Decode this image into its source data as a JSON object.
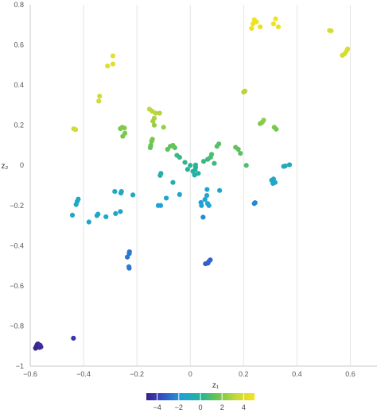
{
  "chart_data": {
    "type": "scatter",
    "xlabel": "z₁",
    "ylabel": "z₂",
    "xlim": [
      -0.6,
      0.7
    ],
    "ylim": [
      -1.0,
      0.8
    ],
    "xticks": [
      "−0.6",
      "−0.4",
      "−0.2",
      "0",
      "0.2",
      "0.4",
      "0.6"
    ],
    "yticks": [
      "0.8",
      "0.6",
      "0.4",
      "0.2",
      "0",
      "−0.2",
      "−0.4",
      "−0.6",
      "−0.8",
      "−1"
    ],
    "grid": "vertical",
    "colorbar": {
      "range": [
        -5,
        5
      ],
      "ticks": [
        "−4",
        "−2",
        "0",
        "2",
        "4"
      ],
      "colorscale": [
        "#3b1e8c",
        "#3557c9",
        "#1fa3d6",
        "#23b39a",
        "#6fc64e",
        "#c8d93a",
        "#f5e31f"
      ]
    },
    "points": [
      {
        "x": -0.574,
        "y": -0.893,
        "c": -4.9
      },
      {
        "x": -0.577,
        "y": -0.902,
        "c": -4.8
      },
      {
        "x": -0.571,
        "y": -0.889,
        "c": -4.7
      },
      {
        "x": -0.565,
        "y": -0.907,
        "c": -4.6
      },
      {
        "x": -0.56,
        "y": -0.904,
        "c": -4.6
      },
      {
        "x": -0.58,
        "y": -0.911,
        "c": -4.8
      },
      {
        "x": -0.563,
        "y": -0.896,
        "c": -4.5
      },
      {
        "x": -0.438,
        "y": -0.861,
        "c": -4.3
      },
      {
        "x": 0.057,
        "y": -0.49,
        "c": -3.3
      },
      {
        "x": 0.066,
        "y": -0.487,
        "c": -3.2
      },
      {
        "x": 0.075,
        "y": -0.471,
        "c": -3.1
      },
      {
        "x": 0.069,
        "y": -0.479,
        "c": -3.1
      },
      {
        "x": -0.236,
        "y": -0.457,
        "c": -2.7
      },
      {
        "x": -0.229,
        "y": -0.44,
        "c": -2.6
      },
      {
        "x": -0.228,
        "y": -0.43,
        "c": -2.6
      },
      {
        "x": -0.23,
        "y": -0.505,
        "c": -2.6
      },
      {
        "x": -0.229,
        "y": -0.512,
        "c": -2.6
      },
      {
        "x": 0.048,
        "y": -0.258,
        "c": -2.2
      },
      {
        "x": 0.24,
        "y": -0.19,
        "c": -2.3
      },
      {
        "x": 0.243,
        "y": -0.186,
        "c": -2.3
      },
      {
        "x": -0.442,
        "y": -0.248,
        "c": -1.3
      },
      {
        "x": -0.428,
        "y": -0.195,
        "c": -1.2
      },
      {
        "x": -0.424,
        "y": -0.18,
        "c": -1.1
      },
      {
        "x": -0.42,
        "y": -0.168,
        "c": -1.1
      },
      {
        "x": -0.38,
        "y": -0.282,
        "c": -1.4
      },
      {
        "x": -0.35,
        "y": -0.25,
        "c": -1.2
      },
      {
        "x": -0.346,
        "y": -0.243,
        "c": -1.2
      },
      {
        "x": -0.316,
        "y": -0.256,
        "c": -1.3
      },
      {
        "x": -0.28,
        "y": -0.24,
        "c": -1.3
      },
      {
        "x": -0.262,
        "y": -0.23,
        "c": -1.2
      },
      {
        "x": -0.283,
        "y": -0.13,
        "c": -1.1
      },
      {
        "x": -0.26,
        "y": -0.138,
        "c": -1.1
      },
      {
        "x": -0.258,
        "y": -0.13,
        "c": -1.0
      },
      {
        "x": -0.215,
        "y": -0.147,
        "c": -1.0
      },
      {
        "x": -0.12,
        "y": -0.2,
        "c": -1.7
      },
      {
        "x": -0.111,
        "y": -0.2,
        "c": -1.6
      },
      {
        "x": -0.09,
        "y": -0.163,
        "c": -1.5
      },
      {
        "x": -0.04,
        "y": -0.145,
        "c": -1.5
      },
      {
        "x": 0.04,
        "y": -0.185,
        "c": -1.8
      },
      {
        "x": 0.042,
        "y": -0.2,
        "c": -1.7
      },
      {
        "x": 0.055,
        "y": -0.17,
        "c": -1.6
      },
      {
        "x": 0.062,
        "y": -0.15,
        "c": -1.5
      },
      {
        "x": 0.063,
        "y": -0.12,
        "c": -1.4
      },
      {
        "x": 0.065,
        "y": -0.19,
        "c": -1.5
      },
      {
        "x": 0.07,
        "y": -0.2,
        "c": -1.6
      },
      {
        "x": 0.11,
        "y": -0.125,
        "c": -1.2
      },
      {
        "x": 0.312,
        "y": -0.068,
        "c": -1.3
      },
      {
        "x": 0.31,
        "y": -0.09,
        "c": -1.4
      },
      {
        "x": 0.318,
        "y": -0.085,
        "c": -1.3
      },
      {
        "x": 0.305,
        "y": -0.074,
        "c": -1.2
      },
      {
        "x": 0.35,
        "y": -0.005,
        "c": -0.9
      },
      {
        "x": 0.356,
        "y": -0.003,
        "c": -0.9
      },
      {
        "x": 0.372,
        "y": 0.003,
        "c": -0.8
      },
      {
        "x": -0.11,
        "y": -0.04,
        "c": -0.4
      },
      {
        "x": -0.113,
        "y": -0.05,
        "c": -0.5
      },
      {
        "x": -0.01,
        "y": -0.02,
        "c": 0.0
      },
      {
        "x": 0.0,
        "y": 0.0,
        "c": 0.1
      },
      {
        "x": 0.01,
        "y": -0.03,
        "c": -0.2
      },
      {
        "x": 0.016,
        "y": -0.048,
        "c": -0.3
      },
      {
        "x": 0.018,
        "y": -0.022,
        "c": -0.1
      },
      {
        "x": 0.02,
        "y": -0.01,
        "c": 0.0
      },
      {
        "x": 0.02,
        "y": 0.002,
        "c": 0.1
      },
      {
        "x": 0.03,
        "y": -0.04,
        "c": -0.2
      },
      {
        "x": -0.065,
        "y": -0.085,
        "c": -0.5
      },
      {
        "x": -0.04,
        "y": 0.04,
        "c": 0.4
      },
      {
        "x": -0.05,
        "y": 0.05,
        "c": 0.5
      },
      {
        "x": -0.02,
        "y": 0.015,
        "c": 0.3
      },
      {
        "x": 0.05,
        "y": 0.02,
        "c": 0.5
      },
      {
        "x": 0.065,
        "y": 0.03,
        "c": 0.6
      },
      {
        "x": 0.076,
        "y": 0.04,
        "c": 0.8
      },
      {
        "x": 0.08,
        "y": 0.055,
        "c": 0.9
      },
      {
        "x": 0.09,
        "y": 0.01,
        "c": 0.6
      },
      {
        "x": 0.1,
        "y": 0.095,
        "c": 1.1
      },
      {
        "x": 0.107,
        "y": 0.107,
        "c": 1.2
      },
      {
        "x": -0.15,
        "y": 0.088,
        "c": 1.4
      },
      {
        "x": -0.148,
        "y": 0.1,
        "c": 1.5
      },
      {
        "x": -0.145,
        "y": 0.12,
        "c": 1.7
      },
      {
        "x": -0.142,
        "y": 0.13,
        "c": 1.8
      },
      {
        "x": -0.085,
        "y": 0.08,
        "c": 1.3
      },
      {
        "x": -0.075,
        "y": 0.095,
        "c": 1.4
      },
      {
        "x": -0.065,
        "y": 0.1,
        "c": 1.5
      },
      {
        "x": -0.058,
        "y": 0.088,
        "c": 1.3
      },
      {
        "x": 0.17,
        "y": 0.09,
        "c": 1.4
      },
      {
        "x": 0.18,
        "y": 0.08,
        "c": 1.3
      },
      {
        "x": 0.188,
        "y": 0.06,
        "c": 1.2
      },
      {
        "x": 0.21,
        "y": 0.0,
        "c": 1.0
      },
      {
        "x": 0.262,
        "y": 0.208,
        "c": 2.0
      },
      {
        "x": 0.27,
        "y": 0.215,
        "c": 2.1
      },
      {
        "x": 0.275,
        "y": 0.225,
        "c": 2.2
      },
      {
        "x": 0.315,
        "y": 0.19,
        "c": 1.9
      },
      {
        "x": 0.322,
        "y": 0.18,
        "c": 1.8
      },
      {
        "x": -0.262,
        "y": 0.183,
        "c": 1.9
      },
      {
        "x": -0.255,
        "y": 0.19,
        "c": 2.0
      },
      {
        "x": -0.247,
        "y": 0.186,
        "c": 2.0
      },
      {
        "x": -0.253,
        "y": 0.145,
        "c": 1.8
      },
      {
        "x": -0.245,
        "y": 0.16,
        "c": 1.9
      },
      {
        "x": -0.1,
        "y": 0.19,
        "c": 2.4
      },
      {
        "x": -0.43,
        "y": 0.178,
        "c": 3.6
      },
      {
        "x": -0.437,
        "y": 0.182,
        "c": 3.7
      },
      {
        "x": -0.343,
        "y": 0.32,
        "c": 3.6
      },
      {
        "x": -0.34,
        "y": 0.345,
        "c": 3.7
      },
      {
        "x": -0.153,
        "y": 0.28,
        "c": 3.2
      },
      {
        "x": -0.143,
        "y": 0.27,
        "c": 3.1
      },
      {
        "x": -0.13,
        "y": 0.26,
        "c": 3.0
      },
      {
        "x": -0.115,
        "y": 0.26,
        "c": 2.9
      },
      {
        "x": -0.135,
        "y": 0.235,
        "c": 2.8
      },
      {
        "x": -0.14,
        "y": 0.22,
        "c": 2.6
      },
      {
        "x": -0.135,
        "y": 0.2,
        "c": 2.4
      },
      {
        "x": 0.205,
        "y": 0.37,
        "c": 3.0
      },
      {
        "x": 0.2,
        "y": 0.365,
        "c": 3.0
      },
      {
        "x": -0.31,
        "y": 0.495,
        "c": 4.2
      },
      {
        "x": -0.29,
        "y": 0.505,
        "c": 4.3
      },
      {
        "x": -0.29,
        "y": 0.545,
        "c": 4.5
      },
      {
        "x": 0.235,
        "y": 0.705,
        "c": 4.8
      },
      {
        "x": 0.24,
        "y": 0.725,
        "c": 4.9
      },
      {
        "x": 0.248,
        "y": 0.715,
        "c": 4.8
      },
      {
        "x": 0.23,
        "y": 0.682,
        "c": 4.7
      },
      {
        "x": 0.262,
        "y": 0.69,
        "c": 4.6
      },
      {
        "x": 0.312,
        "y": 0.705,
        "c": 4.7
      },
      {
        "x": 0.32,
        "y": 0.73,
        "c": 4.9
      },
      {
        "x": 0.33,
        "y": 0.69,
        "c": 4.6
      },
      {
        "x": 0.522,
        "y": 0.672,
        "c": 3.9
      },
      {
        "x": 0.528,
        "y": 0.67,
        "c": 3.9
      },
      {
        "x": 0.57,
        "y": 0.548,
        "c": 3.7
      },
      {
        "x": 0.578,
        "y": 0.555,
        "c": 3.8
      },
      {
        "x": 0.585,
        "y": 0.568,
        "c": 3.9
      },
      {
        "x": 0.59,
        "y": 0.58,
        "c": 4.0
      }
    ]
  }
}
